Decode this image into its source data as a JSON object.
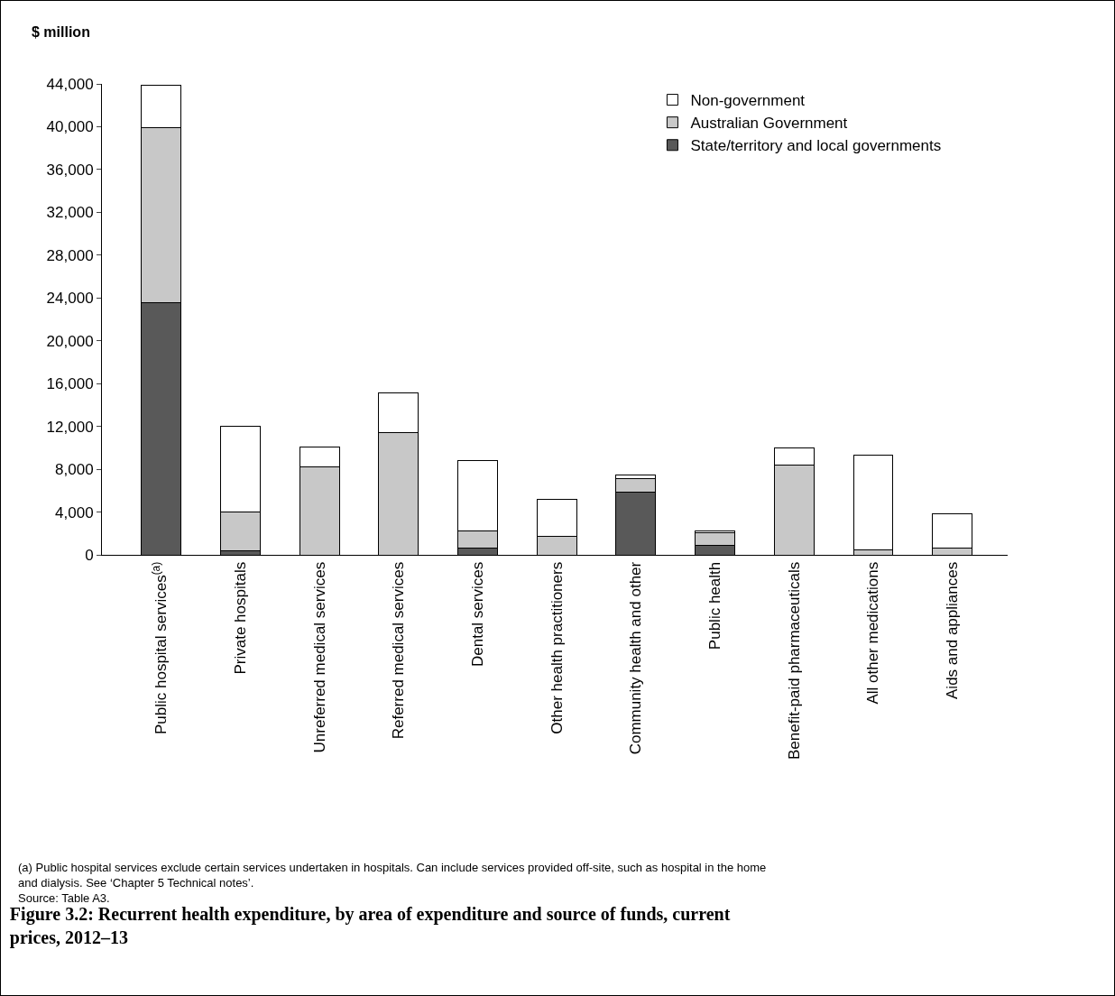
{
  "chart_data": {
    "type": "bar",
    "stacked": true,
    "title": "Figure 3.2: Recurrent health expenditure, by area of expenditure and source of funds, current prices, 2012–13",
    "ylabel": "$ million",
    "categories": [
      "Public hospital services$^{(a)}$",
      "Private hospitals",
      "Unreferred medical services",
      "Referred medical services",
      "Dental services",
      "Other health practitioners",
      "Community health and other",
      "Public health",
      "Benefit-paid pharmaceuticals",
      "All other medications",
      "Aids and appliances"
    ],
    "series": [
      {
        "name": "State/territory and local governments",
        "color": "#595959",
        "values": [
          23600,
          400,
          0,
          0,
          600,
          0,
          5900,
          900,
          0,
          0,
          0
        ]
      },
      {
        "name": "Australian Government",
        "color": "#c8c8c8",
        "values": [
          16300,
          3600,
          8200,
          11400,
          1600,
          1700,
          1200,
          1200,
          8400,
          500,
          600
        ]
      },
      {
        "name": "Non-government",
        "color": "#ffffff",
        "values": [
          4000,
          8000,
          1900,
          3700,
          6600,
          3500,
          400,
          100,
          1600,
          8800,
          3200
        ]
      }
    ],
    "ylim": [
      0,
      44000
    ],
    "yticks": [
      0,
      {
        "value": 4000,
        "label": "4,000"
      },
      {
        "value": 8000,
        "label": "8,000"
      },
      {
        "value": 12000,
        "label": "12,000"
      },
      {
        "value": 16000,
        "label": "16,000"
      },
      {
        "value": 20000,
        "label": "20,000"
      },
      {
        "value": 24000,
        "label": "24,000"
      },
      {
        "value": 28000,
        "label": "28,000"
      },
      {
        "value": 32000,
        "label": "32,000"
      },
      {
        "value": 36000,
        "label": "36,000"
      },
      {
        "value": 40000,
        "label": "40,000"
      },
      {
        "value": 44000,
        "label": "44,000"
      }
    ],
    "grid": false,
    "legend": "top right",
    "annotations": [
      "(a) Public hospital services exclude certain services undertaken in hospitals. Can include services provided off-site, such as hospital in the home and dialysis. See ‘Chapter 5 Technical notes’.",
      "Source: Table A3."
    ]
  }
}
